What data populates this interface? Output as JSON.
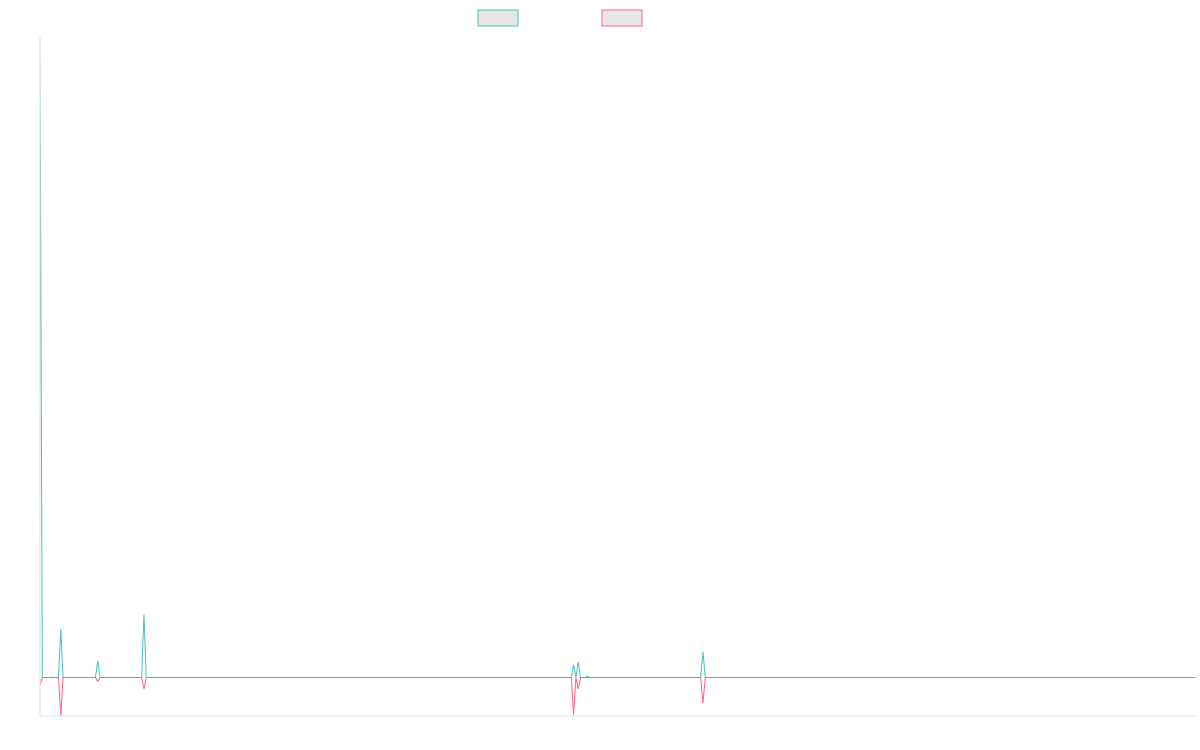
{
  "chart_data": {
    "type": "line",
    "title": "",
    "xlabel": "",
    "ylabel": "",
    "legend": {
      "placement": "top-center"
    },
    "axes": {
      "x_visible": true,
      "y_visible": true,
      "tick_labels_visible": false
    },
    "grid": false,
    "colors": {
      "series_1": "#4bc0c0",
      "series_2": "#ff6384",
      "axis": "#e0e0e0",
      "legend_fill": "#e6e6e6"
    },
    "x": [
      0,
      1,
      8,
      9,
      10,
      24,
      25,
      26,
      44,
      45,
      46,
      73,
      74,
      75,
      76,
      77,
      78,
      79,
      80,
      81,
      82,
      83,
      84,
      85,
      86,
      87,
      88,
      89,
      90,
      126,
      127,
      128,
      230,
      231,
      232,
      233,
      234,
      235,
      236,
      237,
      238,
      239,
      240,
      241,
      242,
      286,
      287,
      288,
      500
    ],
    "ylim": [
      -30,
      500
    ],
    "series": [
      {
        "name": "",
        "color": "#4bc0c0",
        "values": [
          495,
          0,
          0,
          38,
          0,
          0,
          13,
          0,
          0,
          49,
          0,
          0,
          0,
          0,
          0,
          0,
          0,
          0,
          0,
          0,
          0,
          0,
          0,
          0,
          0,
          0,
          0,
          0,
          0,
          0,
          0,
          0,
          0,
          10,
          0,
          12,
          0,
          0,
          0,
          1,
          0,
          0,
          0,
          0,
          0,
          0,
          20,
          0,
          0
        ]
      },
      {
        "name": "",
        "color": "#ff6384",
        "values": [
          -6,
          0,
          0,
          -30,
          0,
          0,
          -3,
          0,
          0,
          -9,
          0,
          0,
          0,
          0,
          0,
          0,
          0,
          0,
          0,
          0,
          0,
          0,
          0,
          0,
          0,
          0,
          0,
          0,
          0,
          0,
          0,
          0,
          0,
          -29,
          0,
          -9,
          0,
          0,
          0,
          0,
          0,
          0,
          0,
          0,
          0,
          0,
          -20,
          0,
          0
        ]
      }
    ]
  }
}
